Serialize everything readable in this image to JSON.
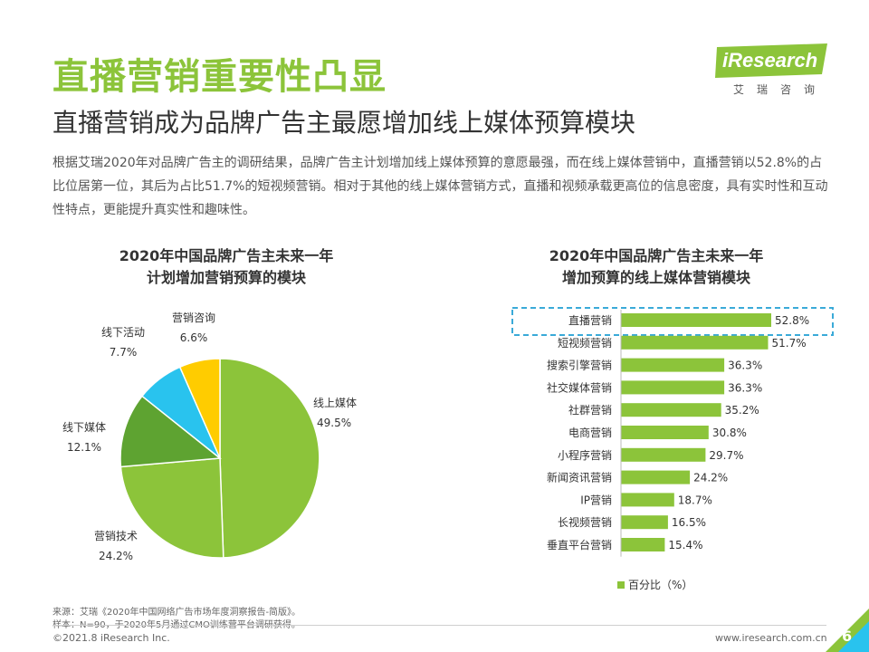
{
  "header": {
    "title": "直播营销重要性凸显",
    "subtitle": "直播营销成为品牌广告主最愿增加线上媒体预算模块",
    "intro": "根据艾瑞2020年对品牌广告主的调研结果，品牌广告主计划增加线上媒体预算的意愿最强，而在线上媒体营销中，直播营销以52.8%的占比位居第一位，其后为占比51.7%的短视频营销。相对于其他的线上媒体营销方式，直播和视频承载更高位的信息密度，具有实时性和互动性特点，更能提升真实性和趣味性。"
  },
  "logo": {
    "text": "iResearch",
    "sub": "艾瑞咨询"
  },
  "footer": {
    "source1": "来源：艾瑞《2020年中国网络广告市场年度洞察报告-简版》。",
    "source2": "样本：N=90，于2020年5月通过CMO训练营平台调研获得。",
    "copyright": "©2021.8 iResearch Inc.",
    "website": "www.iresearch.com.cn",
    "page": "6"
  },
  "colors": {
    "green": "#8cc43a",
    "dark_green": "#5ea331",
    "cyan": "#29c3ee",
    "yellow": "#ffcc00",
    "highlight": "#3aaad8"
  },
  "chart_data": [
    {
      "type": "pie",
      "title_line1": "2020年中国品牌广告主未来一年",
      "title_line2": "计划增加营销预算的模块",
      "slices": [
        {
          "label": "线上媒体",
          "value": 49.5,
          "value_label": "49.5%",
          "color": "#8cc43a"
        },
        {
          "label": "营销技术",
          "value": 24.2,
          "value_label": "24.2%",
          "color": "#8cc43a"
        },
        {
          "label": "线下媒体",
          "value": 12.1,
          "value_label": "12.1%",
          "color": "#5ea331"
        },
        {
          "label": "线下活动",
          "value": 7.7,
          "value_label": "7.7%",
          "color": "#29c3ee"
        },
        {
          "label": "营销咨询",
          "value": 6.6,
          "value_label": "6.6%",
          "color": "#ffcc00"
        }
      ]
    },
    {
      "type": "bar",
      "orientation": "horizontal",
      "title_line1": "2020年中国品牌广告主未来一年",
      "title_line2": "增加预算的线上媒体营销模块",
      "categories": [
        "直播营销",
        "短视频营销",
        "搜索引擎营销",
        "社交媒体营销",
        "社群营销",
        "电商营销",
        "小程序营销",
        "新闻资讯营销",
        "IP营销",
        "长视频营销",
        "垂直平台营销"
      ],
      "values": [
        52.8,
        51.7,
        36.3,
        36.3,
        35.2,
        30.8,
        29.7,
        24.2,
        18.7,
        16.5,
        15.4
      ],
      "value_labels": [
        "52.8%",
        "51.7%",
        "36.3%",
        "36.3%",
        "35.2%",
        "30.8%",
        "29.7%",
        "24.2%",
        "18.7%",
        "16.5%",
        "15.4%"
      ],
      "xlim": [
        0,
        60
      ],
      "highlighted": "直播营销",
      "legend": "百分比（%）",
      "legend_position": "bottom",
      "color": "#8cc43a"
    }
  ]
}
